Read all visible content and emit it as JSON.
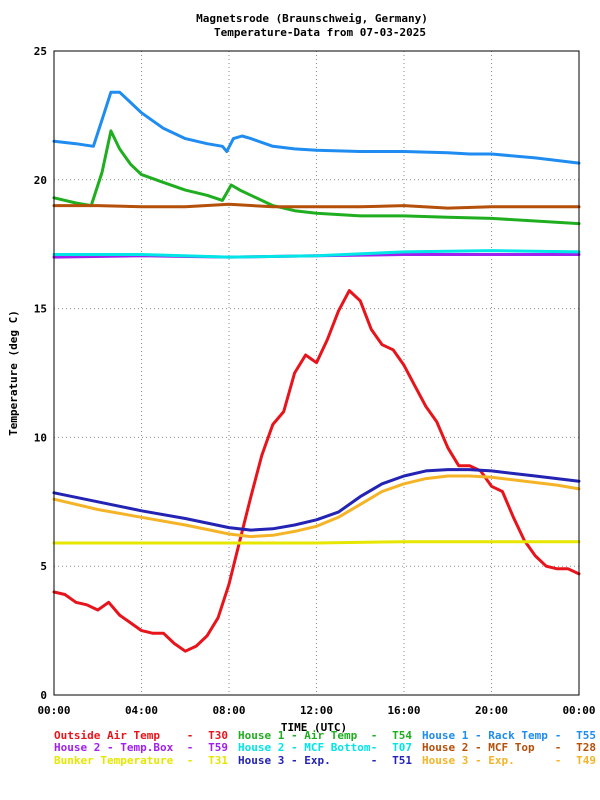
{
  "chart_data": {
    "type": "line",
    "title": "Magnetsrode (Braunschweig, Germany)",
    "subtitle": "Temperature-Data from 07-03-2025",
    "xlabel": "TIME (UTC)",
    "ylabel": "Temperature (deg C)",
    "ylim": [
      0,
      25
    ],
    "xlim": [
      0,
      24
    ],
    "grid": true,
    "x_ticks": [
      "00:00",
      "04:00",
      "08:00",
      "12:00",
      "16:00",
      "20:00",
      "00:00"
    ],
    "y_ticks": [
      "0",
      "5",
      "10",
      "15",
      "20",
      "25"
    ],
    "legend_placement": "bottom",
    "series": [
      {
        "name": "Outside Air Temp",
        "code": "T30",
        "color": "#e8141b",
        "x": [
          0,
          0.5,
          1,
          1.5,
          2,
          2.5,
          3,
          3.5,
          4,
          4.5,
          5,
          5.5,
          6,
          6.5,
          7,
          7.5,
          8,
          8.5,
          9,
          9.5,
          10,
          10.5,
          11,
          11.5,
          12,
          12.5,
          13,
          13.5,
          14,
          14.5,
          15,
          15.5,
          16,
          16.5,
          17,
          17.5,
          18,
          18.5,
          19,
          19.5,
          20,
          20.5,
          21,
          21.5,
          22,
          22.5,
          23,
          23.5,
          24
        ],
        "y": [
          4.0,
          3.9,
          3.6,
          3.5,
          3.3,
          3.6,
          3.1,
          2.8,
          2.5,
          2.4,
          2.4,
          2.0,
          1.7,
          1.9,
          2.3,
          3.0,
          4.3,
          6.0,
          7.7,
          9.3,
          10.5,
          11.0,
          12.5,
          13.2,
          12.9,
          13.8,
          14.9,
          15.7,
          15.3,
          14.2,
          13.6,
          13.4,
          12.8,
          12.0,
          11.2,
          10.6,
          9.6,
          8.9,
          8.9,
          8.7,
          8.1,
          7.9,
          6.9,
          6.0,
          5.4,
          5.0,
          4.9,
          4.9,
          4.7
        ]
      },
      {
        "name": "House 2 - Temp.Box",
        "code": "T59",
        "color": "#a020f0",
        "x": [
          0,
          4,
          8,
          12,
          16,
          20,
          24
        ],
        "y": [
          17.0,
          17.05,
          17.0,
          17.05,
          17.1,
          17.1,
          17.1
        ]
      },
      {
        "name": "Bunker Temperature",
        "code": "T31",
        "color": "#e6e600",
        "x": [
          0,
          4,
          8,
          12,
          16,
          20,
          24
        ],
        "y": [
          5.9,
          5.9,
          5.9,
          5.9,
          5.95,
          5.95,
          5.95
        ]
      },
      {
        "name": "House 1 - Air  Temp",
        "code": "T54",
        "color": "#1fae1f",
        "x": [
          0,
          1,
          1.7,
          2.2,
          2.6,
          3,
          3.5,
          4,
          5,
          6,
          7,
          7.7,
          7.9,
          8.1,
          8.5,
          9,
          10,
          11,
          12,
          14,
          16,
          18,
          20,
          22,
          24
        ],
        "y": [
          19.3,
          19.1,
          19.0,
          20.3,
          21.9,
          21.2,
          20.6,
          20.2,
          19.9,
          19.6,
          19.4,
          19.2,
          19.5,
          19.8,
          19.6,
          19.4,
          19.0,
          18.8,
          18.7,
          18.6,
          18.6,
          18.55,
          18.5,
          18.4,
          18.3
        ]
      },
      {
        "name": "House 2 - MCF Bottom",
        "code": "T07",
        "color": "#00e5e5",
        "x": [
          0,
          4,
          8,
          12,
          16,
          20,
          24
        ],
        "y": [
          17.1,
          17.1,
          17.0,
          17.05,
          17.2,
          17.25,
          17.2
        ]
      },
      {
        "name": "House 3 - Exp.",
        "code": "T51",
        "color": "#2323b4",
        "x": [
          0,
          2,
          4,
          6,
          8,
          9,
          10,
          11,
          12,
          13,
          14,
          15,
          16,
          17,
          18,
          19,
          20,
          21,
          22,
          23,
          24
        ],
        "y": [
          7.85,
          7.5,
          7.15,
          6.85,
          6.5,
          6.4,
          6.45,
          6.6,
          6.8,
          7.1,
          7.7,
          8.2,
          8.5,
          8.7,
          8.75,
          8.75,
          8.7,
          8.6,
          8.5,
          8.4,
          8.3
        ]
      },
      {
        "name": "House 1 - Rack Temp",
        "code": "T55",
        "color": "#1e8cf0",
        "x": [
          0,
          1,
          1.8,
          2.3,
          2.6,
          3,
          3.5,
          4,
          5,
          6,
          7,
          7.7,
          7.9,
          8.2,
          8.6,
          9,
          10,
          11,
          12,
          14,
          16,
          18,
          19,
          20,
          22,
          24
        ],
        "y": [
          21.5,
          21.4,
          21.3,
          22.6,
          23.4,
          23.4,
          23.0,
          22.6,
          22.0,
          21.6,
          21.4,
          21.3,
          21.1,
          21.6,
          21.7,
          21.6,
          21.3,
          21.2,
          21.15,
          21.1,
          21.1,
          21.05,
          21.0,
          21.0,
          20.85,
          20.65
        ]
      },
      {
        "name": "House 2 - MCF Top",
        "code": "T28",
        "color": "#b4500a",
        "x": [
          0,
          2,
          4,
          6,
          8,
          10,
          12,
          14,
          16,
          18,
          20,
          22,
          24
        ],
        "y": [
          19.0,
          19.0,
          18.95,
          18.95,
          19.05,
          18.95,
          18.95,
          18.95,
          19.0,
          18.9,
          18.95,
          18.95,
          18.95
        ]
      },
      {
        "name": "House 3 - Exp.",
        "code": "T49",
        "color": "#f5b428",
        "x": [
          0,
          2,
          4,
          6,
          8,
          9,
          10,
          11,
          12,
          13,
          14,
          15,
          16,
          17,
          18,
          19,
          20,
          21,
          22,
          23,
          24
        ],
        "y": [
          7.6,
          7.2,
          6.9,
          6.6,
          6.25,
          6.15,
          6.2,
          6.35,
          6.55,
          6.9,
          7.4,
          7.9,
          8.2,
          8.4,
          8.5,
          8.5,
          8.45,
          8.35,
          8.25,
          8.15,
          8.0
        ]
      }
    ]
  }
}
